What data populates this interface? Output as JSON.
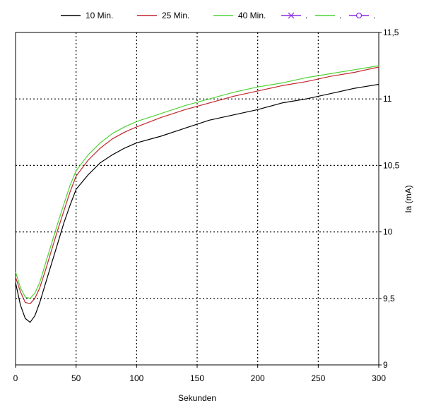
{
  "chart_data": {
    "type": "line",
    "xlabel": "Sekunden",
    "ylabel": "Ia (mA)",
    "xlim": [
      0,
      300
    ],
    "ylim": [
      9,
      11.5
    ],
    "x_ticks": [
      "0",
      "50",
      "100",
      "150",
      "200",
      "250",
      "300"
    ],
    "y_ticks": [
      "9",
      "9,5",
      "10",
      "10,5",
      "11",
      "11,5"
    ],
    "grid": true,
    "legend_position": "top",
    "series": [
      {
        "name": "10 Min.",
        "color": "#000000",
        "x": [
          0,
          4,
          8,
          12,
          16,
          20,
          25,
          30,
          35,
          40,
          45,
          50,
          60,
          70,
          80,
          90,
          100,
          120,
          140,
          160,
          180,
          200,
          220,
          240,
          260,
          280,
          300
        ],
        "y": [
          9.62,
          9.45,
          9.35,
          9.32,
          9.37,
          9.47,
          9.62,
          9.77,
          9.92,
          10.07,
          10.2,
          10.32,
          10.43,
          10.52,
          10.58,
          10.63,
          10.67,
          10.72,
          10.78,
          10.84,
          10.88,
          10.92,
          10.97,
          11.0,
          11.04,
          11.08,
          11.11
        ]
      },
      {
        "name": "25 Min.",
        "color": "#c0272d",
        "x": [
          0,
          4,
          8,
          12,
          16,
          20,
          25,
          30,
          35,
          40,
          45,
          50,
          60,
          70,
          80,
          90,
          100,
          120,
          140,
          160,
          180,
          200,
          220,
          240,
          260,
          280,
          300
        ],
        "y": [
          9.66,
          9.55,
          9.47,
          9.46,
          9.5,
          9.58,
          9.72,
          9.87,
          10.02,
          10.16,
          10.3,
          10.42,
          10.54,
          10.63,
          10.7,
          10.75,
          10.79,
          10.86,
          10.92,
          10.97,
          11.02,
          11.06,
          11.1,
          11.13,
          11.17,
          11.2,
          11.24
        ]
      },
      {
        "name": "40 Min.",
        "color": "#4fd336",
        "x": [
          0,
          4,
          8,
          12,
          16,
          20,
          25,
          30,
          35,
          40,
          45,
          50,
          60,
          70,
          80,
          90,
          100,
          120,
          140,
          160,
          180,
          200,
          220,
          240,
          260,
          280,
          300
        ],
        "y": [
          9.7,
          9.58,
          9.51,
          9.5,
          9.54,
          9.62,
          9.77,
          9.92,
          10.07,
          10.21,
          10.35,
          10.46,
          10.58,
          10.67,
          10.74,
          10.79,
          10.83,
          10.89,
          10.95,
          11.0,
          11.05,
          11.09,
          11.12,
          11.16,
          11.19,
          11.22,
          11.25
        ]
      }
    ],
    "legend_extra": [
      {
        "label": ".",
        "color": "#8a2be2",
        "marker": "x"
      },
      {
        "label": ".",
        "color": "#4fd336",
        "marker": "dash"
      },
      {
        "label": ".",
        "color": "#8a2be2",
        "marker": "o"
      }
    ]
  }
}
